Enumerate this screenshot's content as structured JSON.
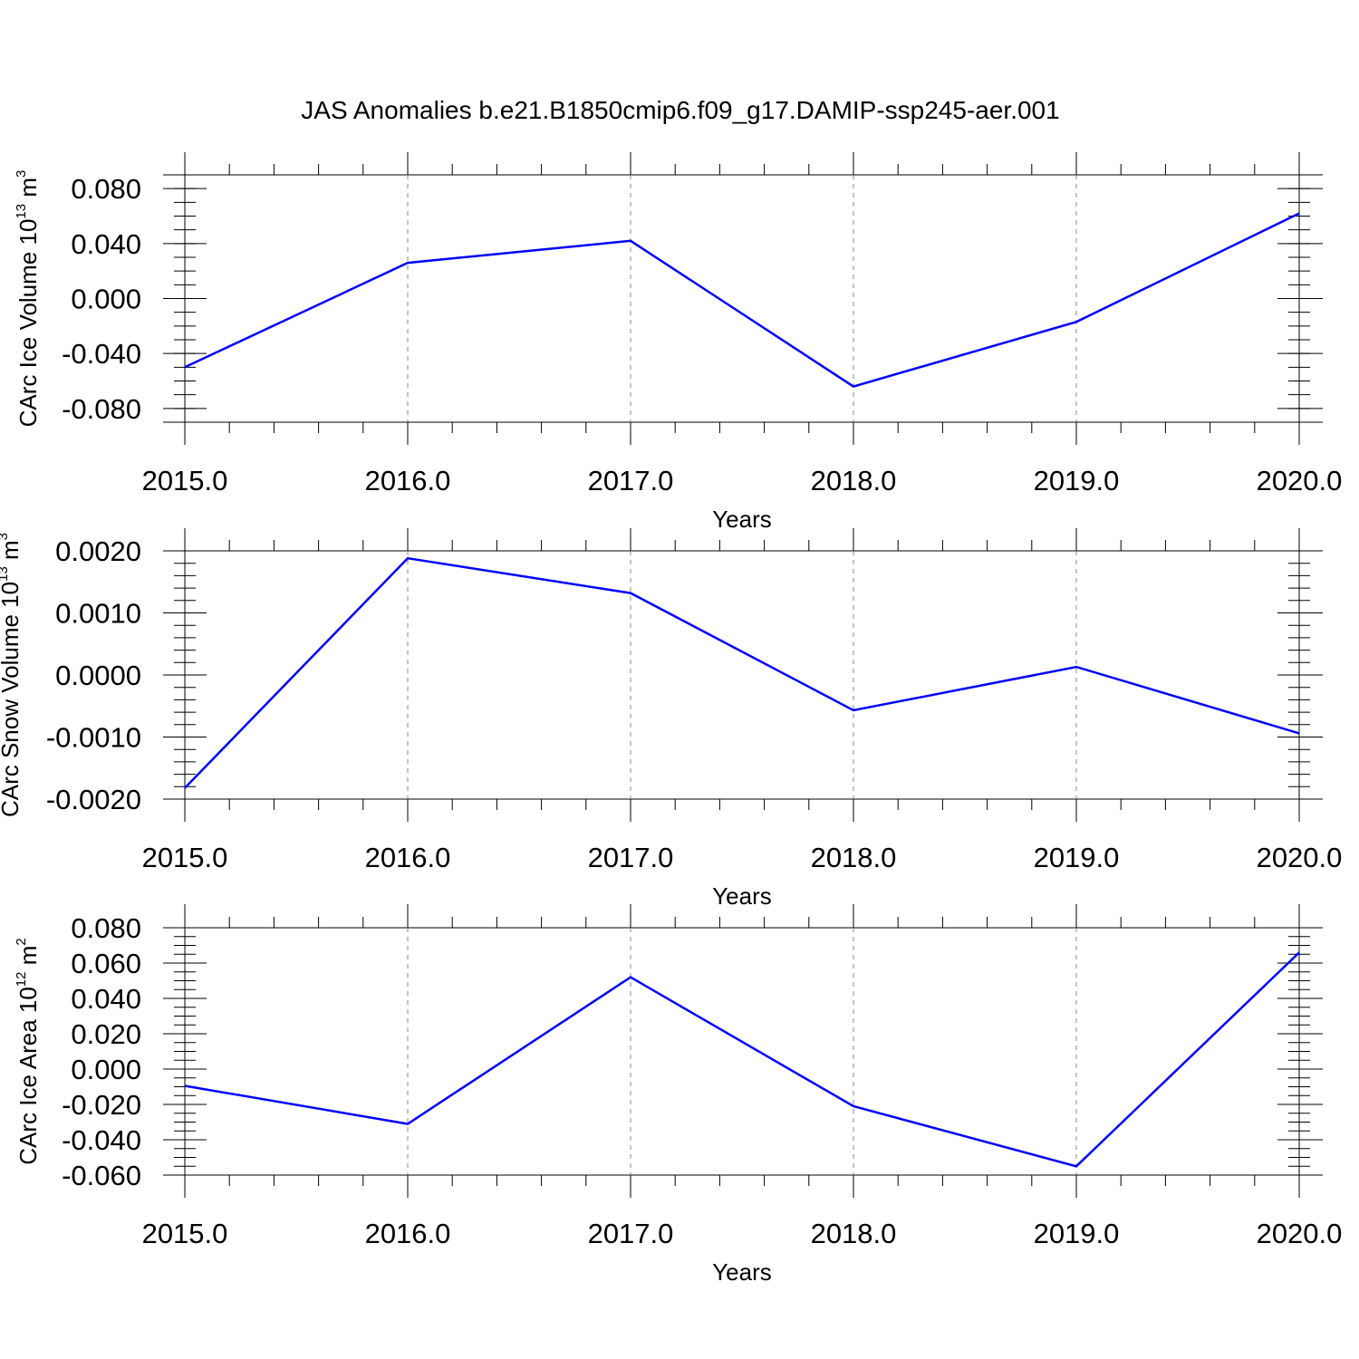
{
  "figure": {
    "title": "JAS Anomalies b.e21.B1850cmip6.f09_g17.DAMIP-ssp245-aer.001"
  },
  "chart_data": [
    {
      "type": "line",
      "title": "JAS Anomalies b.e21.B1850cmip6.f09_g17.DAMIP-ssp245-aer.001",
      "xlabel": "Years",
      "ylabel": {
        "main": "CArc Ice Volume 10",
        "exp": "13",
        "unit": " m",
        "unit_exp": "3"
      },
      "x": [
        2015,
        2016,
        2017,
        2018,
        2019,
        2020
      ],
      "series": [
        {
          "values": [
            -0.05,
            0.026,
            0.042,
            -0.064,
            -0.017,
            0.062
          ],
          "color": "#0000ff"
        }
      ],
      "xlim": [
        2015,
        2020
      ],
      "ylim": [
        -0.09,
        0.09
      ],
      "xticks": [
        "2015.0",
        "2016.0",
        "2017.0",
        "2018.0",
        "2019.0",
        "2020.0"
      ],
      "yticks": [
        {
          "value": 0.08,
          "label": "0.080"
        },
        {
          "value": 0.04,
          "label": "0.040"
        },
        {
          "value": 0.0,
          "label": "0.000"
        },
        {
          "value": -0.04,
          "label": "-0.040"
        },
        {
          "value": -0.08,
          "label": "-0.080"
        }
      ],
      "y_minor_step": 0.01,
      "grid": "vertical dashed"
    },
    {
      "type": "line",
      "xlabel": "Years",
      "ylabel": {
        "main": "CArc Snow Volume 10",
        "exp": "13",
        "unit": " m",
        "unit_exp": "3"
      },
      "x": [
        2015,
        2016,
        2017,
        2018,
        2019,
        2020
      ],
      "series": [
        {
          "values": [
            -0.00182,
            0.00188,
            0.00132,
            -0.00057,
            0.00013,
            -0.00094
          ],
          "color": "#0000ff"
        }
      ],
      "xlim": [
        2015,
        2020
      ],
      "ylim": [
        -0.002,
        0.002
      ],
      "xticks": [
        "2015.0",
        "2016.0",
        "2017.0",
        "2018.0",
        "2019.0",
        "2020.0"
      ],
      "yticks": [
        {
          "value": 0.002,
          "label": "0.0020"
        },
        {
          "value": 0.001,
          "label": "0.0010"
        },
        {
          "value": 0.0,
          "label": "0.0000"
        },
        {
          "value": -0.001,
          "label": "-0.0010"
        },
        {
          "value": -0.002,
          "label": "-0.0020"
        }
      ],
      "y_minor_step": 0.0002,
      "grid": "vertical dashed"
    },
    {
      "type": "line",
      "xlabel": "Years",
      "ylabel": {
        "main": "CArc Ice Area 10",
        "exp": "12",
        "unit": " m",
        "unit_exp": "2"
      },
      "x": [
        2015,
        2016,
        2017,
        2018,
        2019,
        2020
      ],
      "series": [
        {
          "values": [
            -0.0095,
            -0.031,
            0.052,
            -0.021,
            -0.055,
            0.066
          ],
          "color": "#0000ff"
        }
      ],
      "xlim": [
        2015,
        2020
      ],
      "ylim": [
        -0.06,
        0.08
      ],
      "xticks": [
        "2015.0",
        "2016.0",
        "2017.0",
        "2018.0",
        "2019.0",
        "2020.0"
      ],
      "yticks": [
        {
          "value": 0.08,
          "label": "0.080"
        },
        {
          "value": 0.06,
          "label": "0.060"
        },
        {
          "value": 0.04,
          "label": "0.040"
        },
        {
          "value": 0.02,
          "label": "0.020"
        },
        {
          "value": 0.0,
          "label": "0.000"
        },
        {
          "value": -0.02,
          "label": "-0.020"
        },
        {
          "value": -0.04,
          "label": "-0.040"
        },
        {
          "value": -0.06,
          "label": "-0.060"
        }
      ],
      "y_minor_step": 0.005,
      "grid": "vertical dashed"
    }
  ]
}
